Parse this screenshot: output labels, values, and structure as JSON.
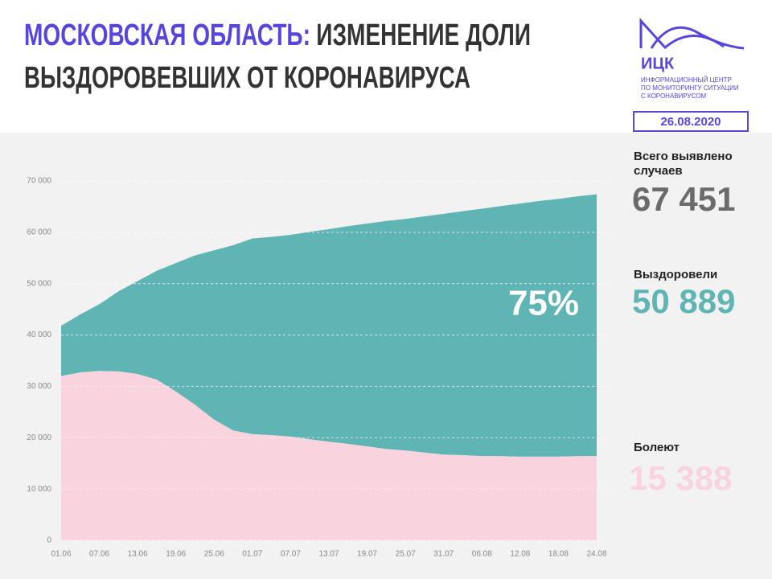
{
  "chart_data": {
    "type": "stacked_area",
    "title_parts": [
      "МОСКОВСКАЯ ОБЛАСТЬ:",
      "ИЗМЕНЕНИЕ ДОЛИ",
      "ВЫЗДОРОВЕВШИХ ОТ КОРОНАВИРУСА"
    ],
    "logo": {
      "name": "ИЦК",
      "lines": [
        "ИНФОРМАЦИОННЫЙ ЦЕНТР",
        "ПО МОНИТОРИНГУ СИТУАЦИИ",
        "С КОРОНАВИРУСОМ"
      ]
    },
    "date": "26.08.2020",
    "annotation": "75%",
    "summary": {
      "total_label": [
        "Всего выявлено",
        "случаев"
      ],
      "total": "67 451",
      "recovered": "50 889",
      "sick": "15 388"
    },
    "categories": [
      "01.06",
      null,
      "07.06",
      null,
      "13.06",
      null,
      "19.06",
      null,
      "25.06",
      null,
      "01.07",
      null,
      "07.07",
      null,
      "13.07",
      null,
      "19.07",
      null,
      "25.07",
      null,
      "31.07",
      null,
      "06.08",
      null,
      "12.08",
      null,
      "18.08",
      null,
      "24.08"
    ],
    "series": [
      {
        "name": "Болеют",
        "color": "#f9d3de",
        "values": [
          32000,
          32700,
          33000,
          32900,
          32400,
          31300,
          29000,
          26400,
          23500,
          21400,
          20700,
          20500,
          20200,
          19700,
          19200,
          18800,
          18300,
          17800,
          17500,
          17100,
          16700,
          16600,
          16400,
          16400,
          16300,
          16300,
          16300,
          16400,
          16400
        ]
      },
      {
        "name": "Выздоровели",
        "color": "#5fb4b4",
        "values": [
          9800,
          11300,
          13000,
          15600,
          18100,
          21200,
          25000,
          29100,
          33000,
          36100,
          38100,
          38600,
          39300,
          40400,
          41400,
          42400,
          43400,
          44400,
          45100,
          46000,
          46900,
          47500,
          48200,
          48700,
          49300,
          49800,
          50200,
          50600,
          51000
        ]
      }
    ],
    "total_color": "#6b6b6b",
    "accent_color": "#5646dc",
    "ylim": [
      0,
      70000
    ],
    "yticks": [
      0,
      {
        "value": 10000,
        "label": "10 000"
      },
      {
        "value": 20000,
        "label": "20 000"
      },
      {
        "value": 30000,
        "label": "30 000"
      },
      {
        "value": 40000,
        "label": "40 000"
      },
      {
        "value": 50000,
        "label": "50 000"
      },
      {
        "value": 60000,
        "label": "60 000"
      },
      {
        "value": 70000,
        "label": "70 000"
      }
    ],
    "grid": true
  }
}
